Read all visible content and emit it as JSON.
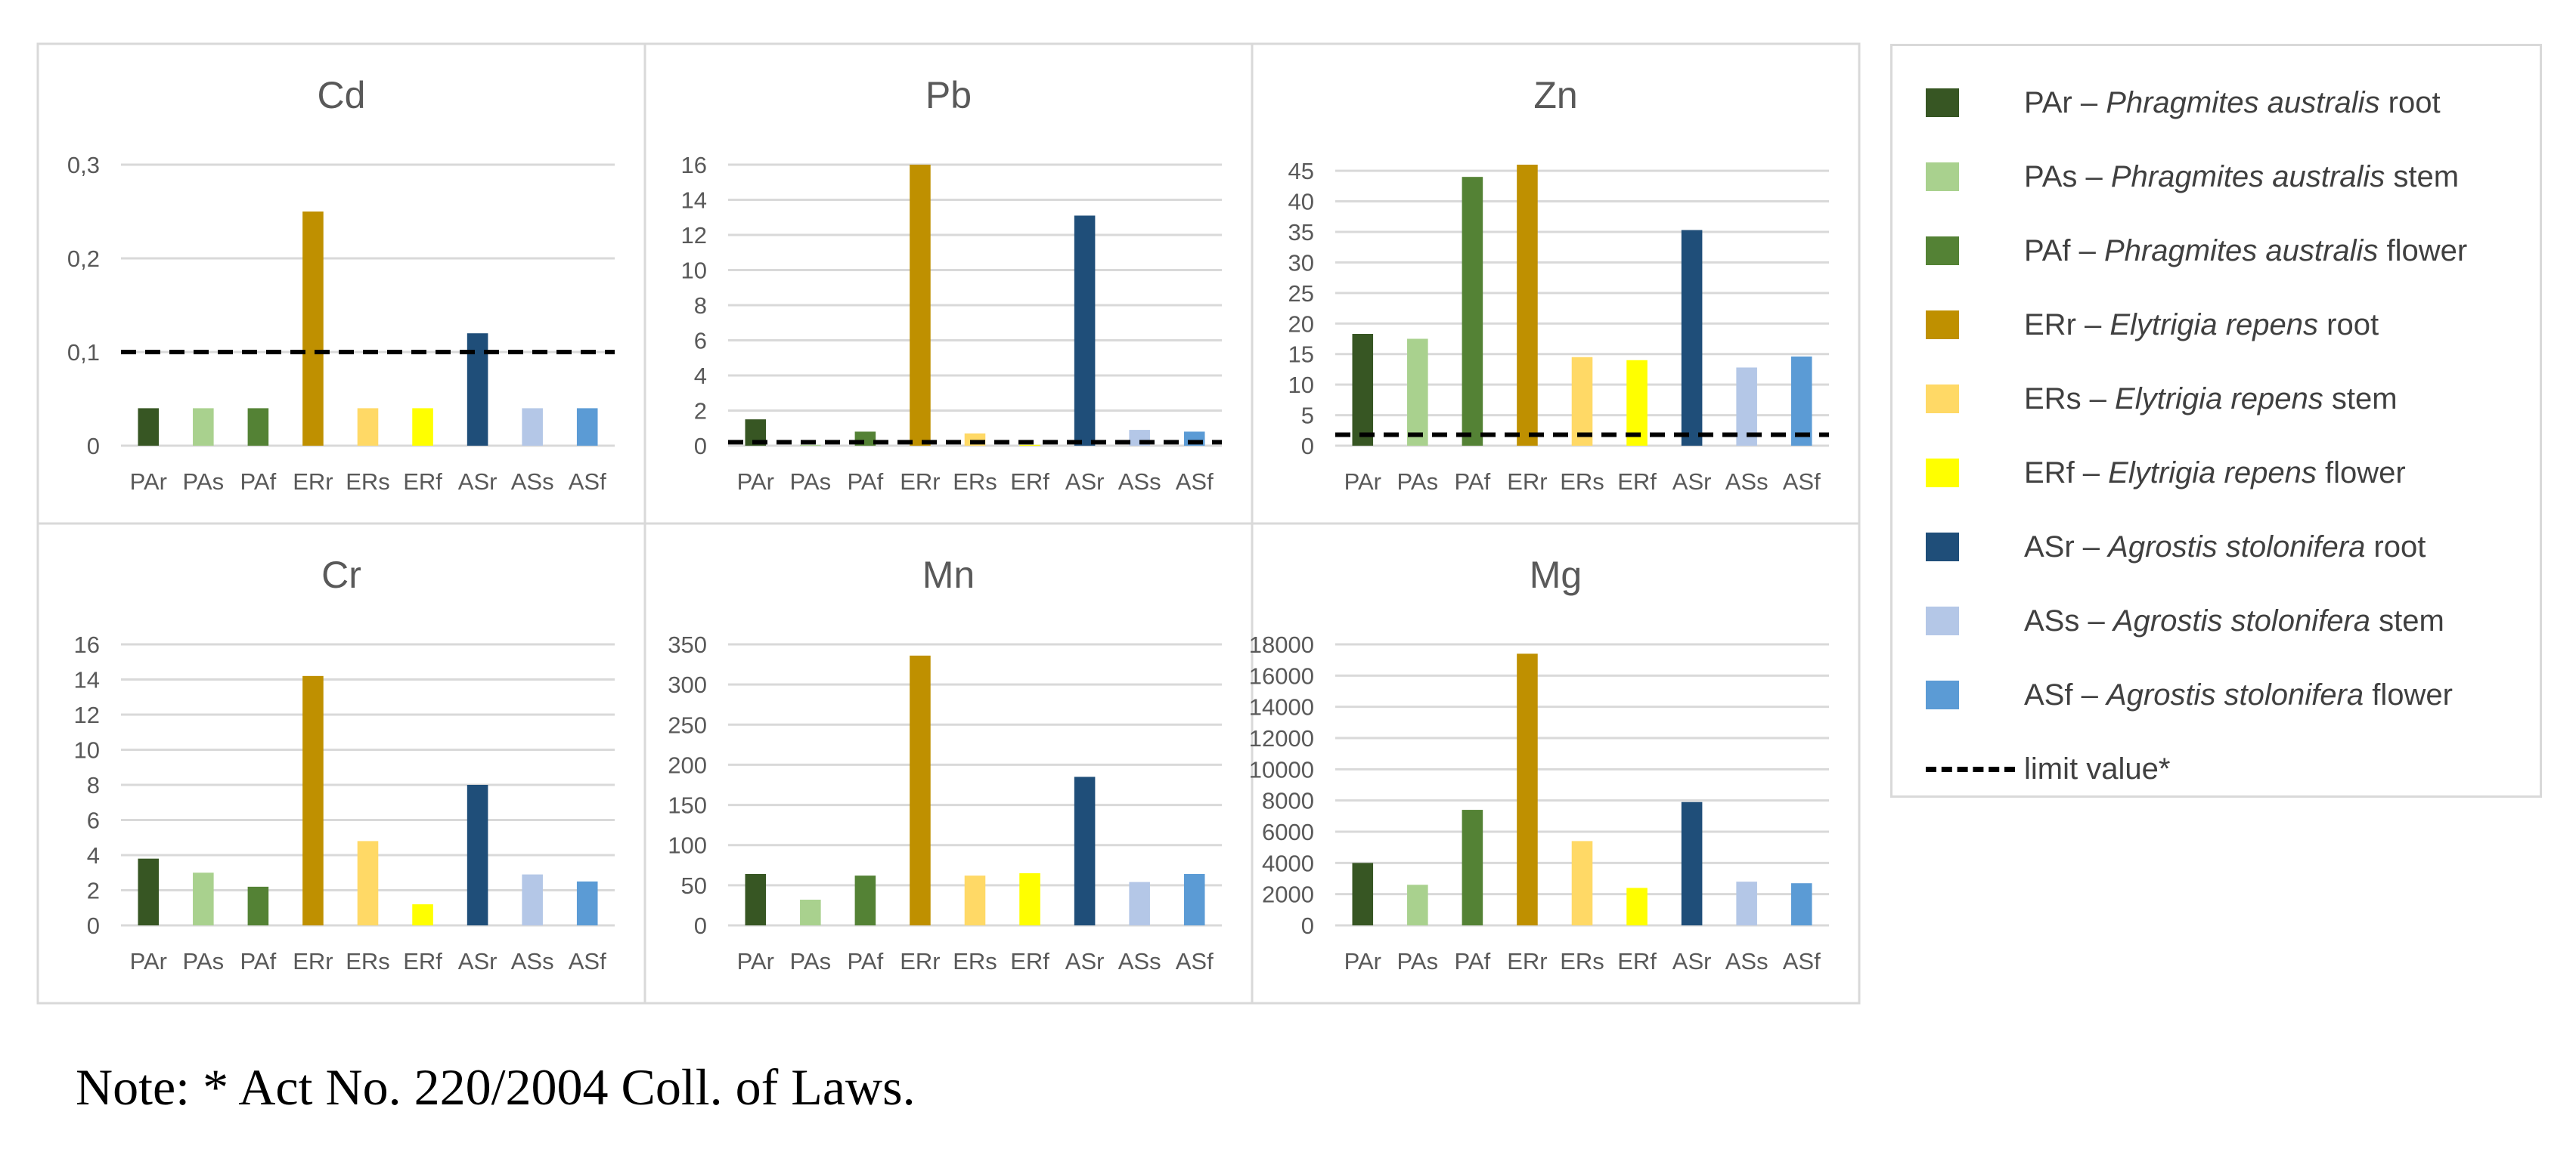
{
  "chart_data": [
    {
      "type": "bar",
      "title": "Cd",
      "categories": [
        "PAr",
        "PAs",
        "PAf",
        "ERr",
        "ERs",
        "ERf",
        "ASr",
        "ASs",
        "ASf"
      ],
      "values": [
        0.04,
        0.04,
        0.04,
        0.25,
        0.04,
        0.04,
        0.12,
        0.04,
        0.04
      ],
      "limit": 0.1,
      "ylim": [
        0,
        0.3
      ],
      "yticks": [
        0,
        0.1,
        0.2,
        0.3
      ],
      "ytick_labels": [
        "0",
        "0,1",
        "0,2",
        "0,3"
      ],
      "grid": true
    },
    {
      "type": "bar",
      "title": "Pb",
      "categories": [
        "PAr",
        "PAs",
        "PAf",
        "ERr",
        "ERs",
        "ERf",
        "ASr",
        "ASs",
        "ASf"
      ],
      "values": [
        1.5,
        0.05,
        0.8,
        16,
        0.7,
        0.05,
        13.1,
        0.9,
        0.8
      ],
      "limit": 0.2,
      "ylim": [
        0,
        16
      ],
      "yticks": [
        0,
        2,
        4,
        6,
        8,
        10,
        12,
        14,
        16
      ],
      "ytick_labels": [
        "0",
        "2",
        "4",
        "6",
        "8",
        "10",
        "12",
        "14",
        "16"
      ],
      "grid": true
    },
    {
      "type": "bar",
      "title": "Zn",
      "categories": [
        "PAr",
        "PAs",
        "PAf",
        "ERr",
        "ERs",
        "ERf",
        "ASr",
        "ASs",
        "ASf"
      ],
      "values": [
        18.3,
        17.5,
        44,
        46,
        14.5,
        14,
        35.3,
        12.8,
        14.6
      ],
      "limit": 1.8,
      "ylim": [
        0,
        46
      ],
      "yticks": [
        0,
        5,
        10,
        15,
        20,
        25,
        30,
        35,
        40,
        45
      ],
      "ytick_labels": [
        "0",
        "5",
        "10",
        "15",
        "20",
        "25",
        "30",
        "35",
        "40",
        "45"
      ],
      "grid": true
    },
    {
      "type": "bar",
      "title": "Cr",
      "categories": [
        "PAr",
        "PAs",
        "PAf",
        "ERr",
        "ERs",
        "ERf",
        "ASr",
        "ASs",
        "ASf"
      ],
      "values": [
        3.8,
        3.0,
        2.2,
        14.2,
        4.8,
        1.2,
        8.0,
        2.9,
        2.5
      ],
      "ylim": [
        0,
        16
      ],
      "yticks": [
        0,
        2,
        4,
        6,
        8,
        10,
        12,
        14,
        16
      ],
      "ytick_labels": [
        "0",
        "2",
        "4",
        "6",
        "8",
        "10",
        "12",
        "14",
        "16"
      ],
      "grid": true
    },
    {
      "type": "bar",
      "title": "Mn",
      "categories": [
        "PAr",
        "PAs",
        "PAf",
        "ERr",
        "ERs",
        "ERf",
        "ASr",
        "ASs",
        "ASf"
      ],
      "values": [
        64,
        32,
        62,
        336,
        62,
        65,
        185,
        54,
        64
      ],
      "ylim": [
        0,
        350
      ],
      "yticks": [
        0,
        50,
        100,
        150,
        200,
        250,
        300,
        350
      ],
      "ytick_labels": [
        "0",
        "50",
        "100",
        "150",
        "200",
        "250",
        "300",
        "350"
      ],
      "grid": true
    },
    {
      "type": "bar",
      "title": "Mg",
      "categories": [
        "PAr",
        "PAs",
        "PAf",
        "ERr",
        "ERs",
        "ERf",
        "ASr",
        "ASs",
        "ASf"
      ],
      "values": [
        4000,
        2600,
        7400,
        17400,
        5400,
        2400,
        7900,
        2800,
        2700
      ],
      "ylim": [
        0,
        18000
      ],
      "yticks": [
        0,
        2000,
        4000,
        6000,
        8000,
        10000,
        12000,
        14000,
        16000,
        18000
      ],
      "ytick_labels": [
        "0",
        "2000",
        "4000",
        "6000",
        "8000",
        "10000",
        "12000",
        "14000",
        "16000",
        "18000"
      ],
      "grid": true
    }
  ],
  "colors": {
    "PAr": "#375623",
    "PAs": "#a9d18e",
    "PAf": "#548235",
    "ERr": "#bf9000",
    "ERs": "#ffd966",
    "ERf": "#ffff00",
    "ASr": "#1f4e79",
    "ASs": "#b4c7e7",
    "ASf": "#5b9bd5",
    "limit": "#000000",
    "grid": "#d9d9d9",
    "text": "#595959"
  },
  "legend": [
    {
      "code": "PAr",
      "prefix": "PAr – ",
      "species": "Phragmites australis",
      "part": " root"
    },
    {
      "code": "PAs",
      "prefix": "PAs – ",
      "species": "Phragmites australis",
      "part": " stem"
    },
    {
      "code": "PAf",
      "prefix": "PAf – ",
      "species": "Phragmites australis",
      "part": " flower"
    },
    {
      "code": "ERr",
      "prefix": "ERr – ",
      "species": "Elytrigia repens",
      "part": " root"
    },
    {
      "code": "ERs",
      "prefix": "ERs – ",
      "species": "Elytrigia repens",
      "part": " stem"
    },
    {
      "code": "ERf",
      "prefix": "ERf – ",
      "species": "Elytrigia repens",
      "part": " flower"
    },
    {
      "code": "ASr",
      "prefix": "ASr – ",
      "species": "Agrostis stolonifera",
      "part": " root"
    },
    {
      "code": "ASs",
      "prefix": "ASs – ",
      "species": "Agrostis stolonifera",
      "part": " stem"
    },
    {
      "code": "ASf",
      "prefix": "ASf – ",
      "species": "Agrostis stolonifera",
      "part": " flower"
    }
  ],
  "legend_limit_label": "limit value*",
  "note": "Note: * Act No. 220/2004 Coll. of Laws."
}
